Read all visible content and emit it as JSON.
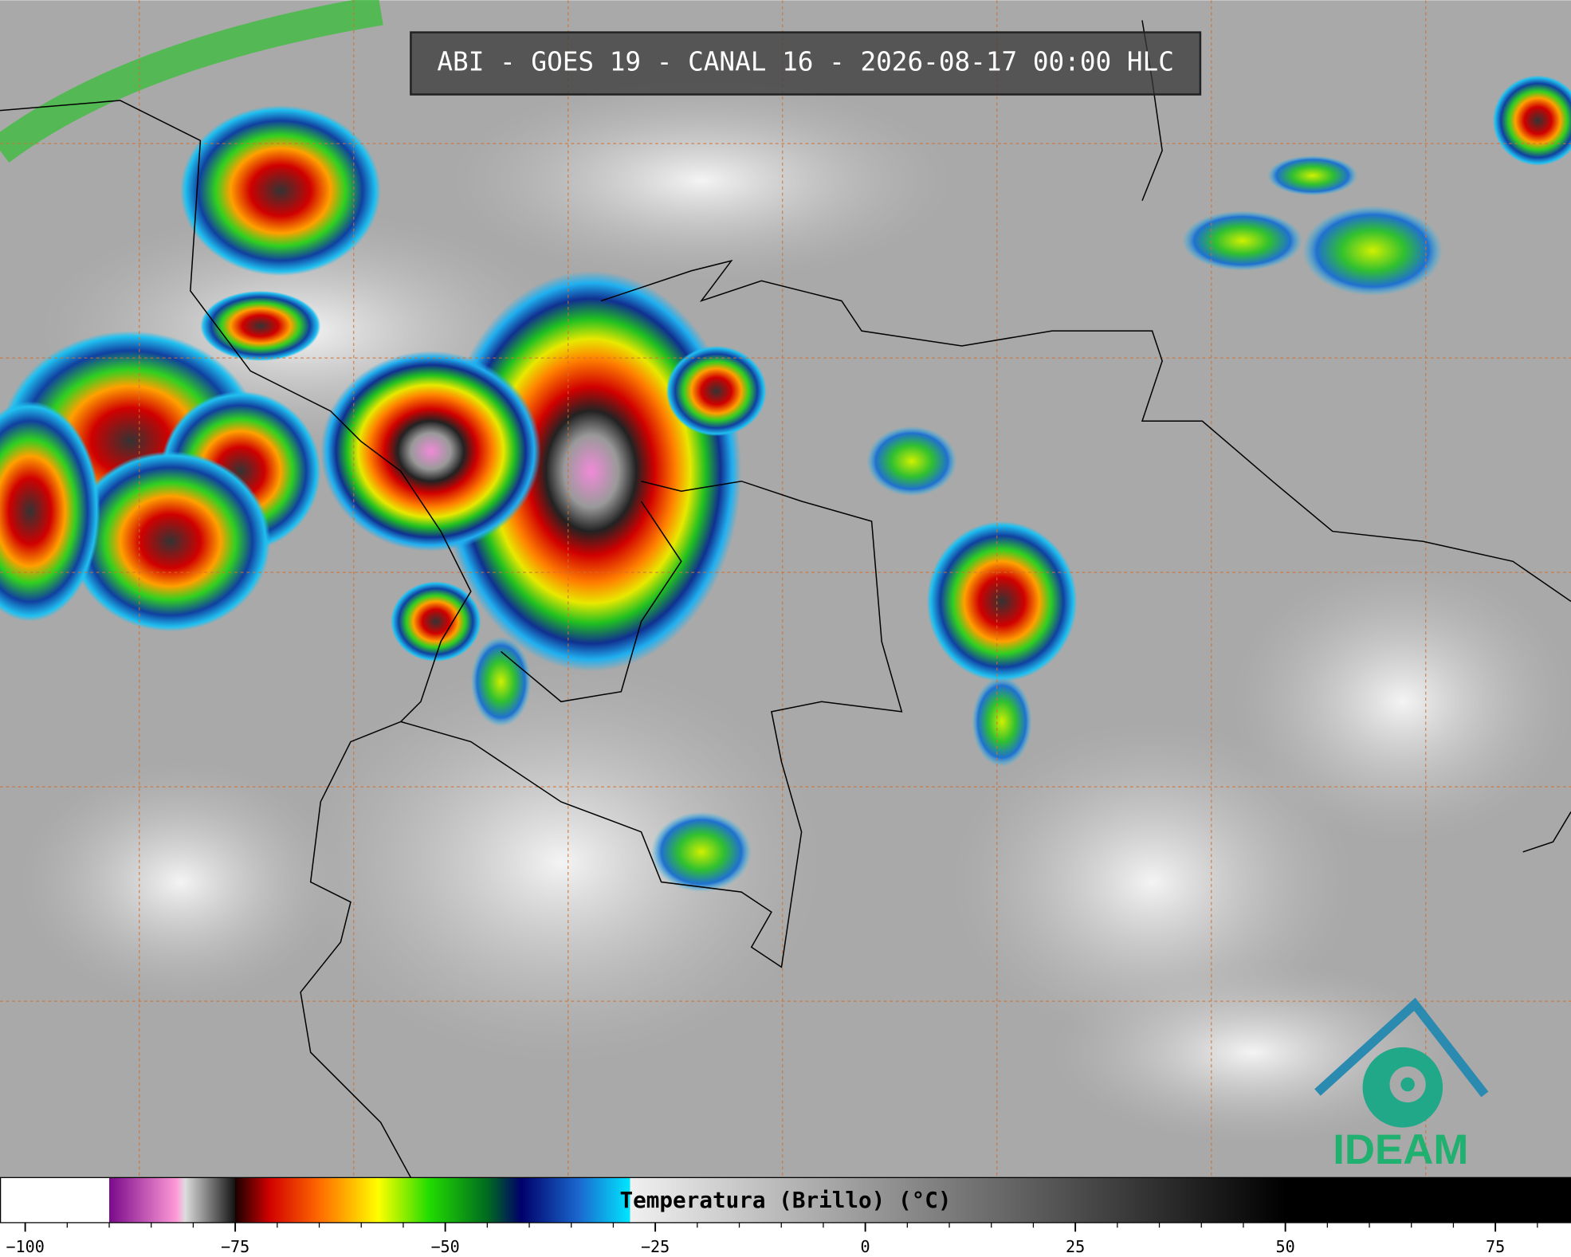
{
  "title": "ABI - GOES 19 - CANAL 16 - 2026-08-17 00:00 HLC",
  "logo": {
    "text": "IDEAM"
  },
  "chart_data": {
    "type": "colorbar",
    "title": "Temperatura (Brillo) (°C)",
    "xlim": [
      -103,
      84
    ],
    "xticks": [
      {
        "value": -100,
        "label": "−100"
      },
      {
        "value": -75,
        "label": "−75"
      },
      {
        "value": -50,
        "label": "−50"
      },
      {
        "value": -25,
        "label": "−25"
      },
      0,
      25,
      50,
      75
    ],
    "xminorticks": [
      -95,
      -90,
      -85,
      -80,
      -70,
      -65,
      -60,
      -55,
      -45,
      -40,
      -35,
      -30,
      -20,
      -15,
      -10,
      -5,
      5,
      10,
      15,
      20,
      30,
      35,
      40,
      45,
      55,
      60,
      65,
      70,
      80
    ],
    "colorscale": [
      {
        "value": -103,
        "color": "#ffffff"
      },
      {
        "value": -90,
        "color": "#ffffff"
      },
      {
        "value": -90,
        "color": "#7a0a8a"
      },
      {
        "value": -82,
        "color": "#ff9ad8"
      },
      {
        "value": -81,
        "color": "#dddddd"
      },
      {
        "value": -75,
        "color": "#111111"
      },
      {
        "value": -75,
        "color": "#1a0000"
      },
      {
        "value": -71,
        "color": "#d00000"
      },
      {
        "value": -65,
        "color": "#ff6a00"
      },
      {
        "value": -58,
        "color": "#ffff00"
      },
      {
        "value": -52,
        "color": "#22dd00"
      },
      {
        "value": -45,
        "color": "#006a20"
      },
      {
        "value": -41,
        "color": "#00006a"
      },
      {
        "value": -34,
        "color": "#1a6ad0"
      },
      {
        "value": -28,
        "color": "#00e8ff"
      },
      {
        "value": -28,
        "color": "#f0f0f0"
      },
      {
        "value": 50,
        "color": "#000000"
      },
      {
        "value": 84,
        "color": "#000000"
      }
    ]
  }
}
